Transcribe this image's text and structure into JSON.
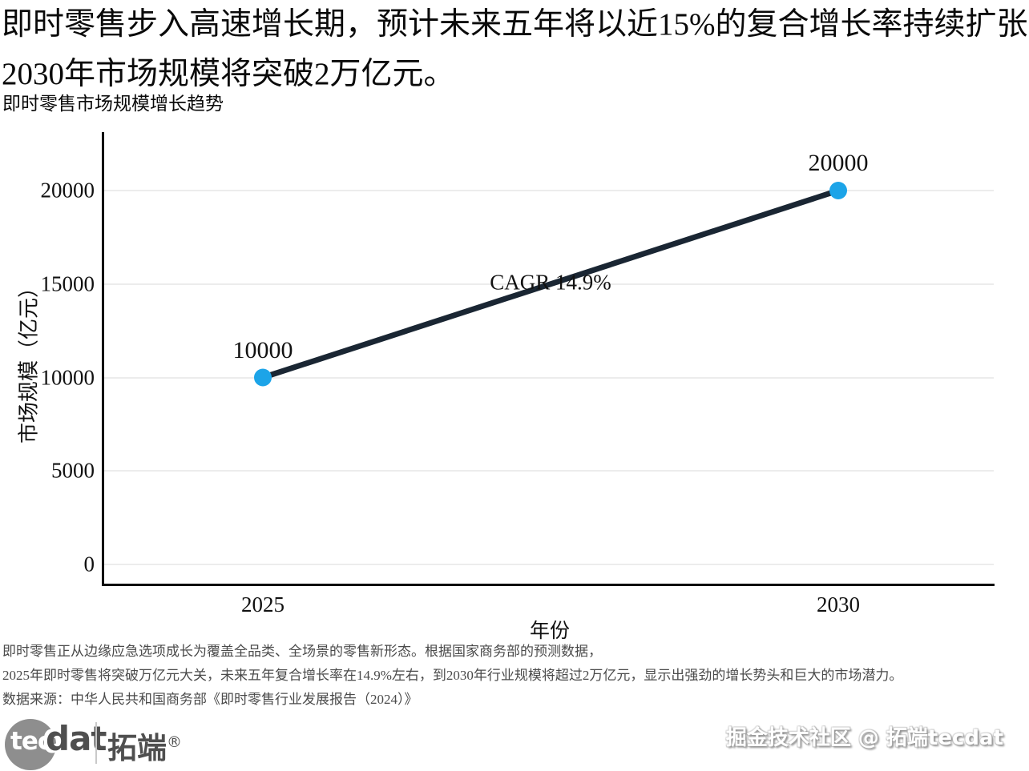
{
  "header": {
    "title_line1": "即时零售步入高速增长期，预计未来五年将以近15%的复合增长率持续扩张，",
    "title_line2": "2030年市场规模将突破2万亿元。",
    "subtitle": "即时零售市场规模增长趋势"
  },
  "chart_data": {
    "type": "line",
    "title": "即时零售市场规模增长趋势",
    "categories": [
      "2025",
      "2030"
    ],
    "series": [
      {
        "name": "市场规模",
        "values": [
          10000,
          20000
        ]
      }
    ],
    "point_labels": [
      "10000",
      "20000"
    ],
    "annotation": "CAGR 14.9%",
    "xlabel": "年份",
    "ylabel": "市场规模（亿元）",
    "yticks": [
      0,
      5000,
      10000,
      15000,
      20000
    ],
    "ylim": [
      -1070,
      23150
    ],
    "grid": "horizontal-light-gray",
    "legend": "none",
    "line_color": "#1a2633",
    "marker_color": "#1ca4e8",
    "grid_color": "#ececec"
  },
  "footer": {
    "line1": "即时零售正从边缘应急选项成长为覆盖全品类、全场景的零售新形态。根据国家商务部的预测数据，",
    "line2": "2025年即时零售将突破万亿元大关，未来五年复合增长率在14.9%左右，到2030年行业规模将超过2万亿元，显示出强劲的增长势头和巨大的市场潜力。",
    "line3": "数据来源：中华人民共和国商务部《即时零售行业发展报告（2024）》"
  },
  "branding": {
    "logo_circle_text": "tec",
    "logo_text": "dat",
    "logo_cn": "拓端",
    "logo_reg": "®",
    "watermark": "掘金技术社区 @ 拓端tecdat"
  }
}
